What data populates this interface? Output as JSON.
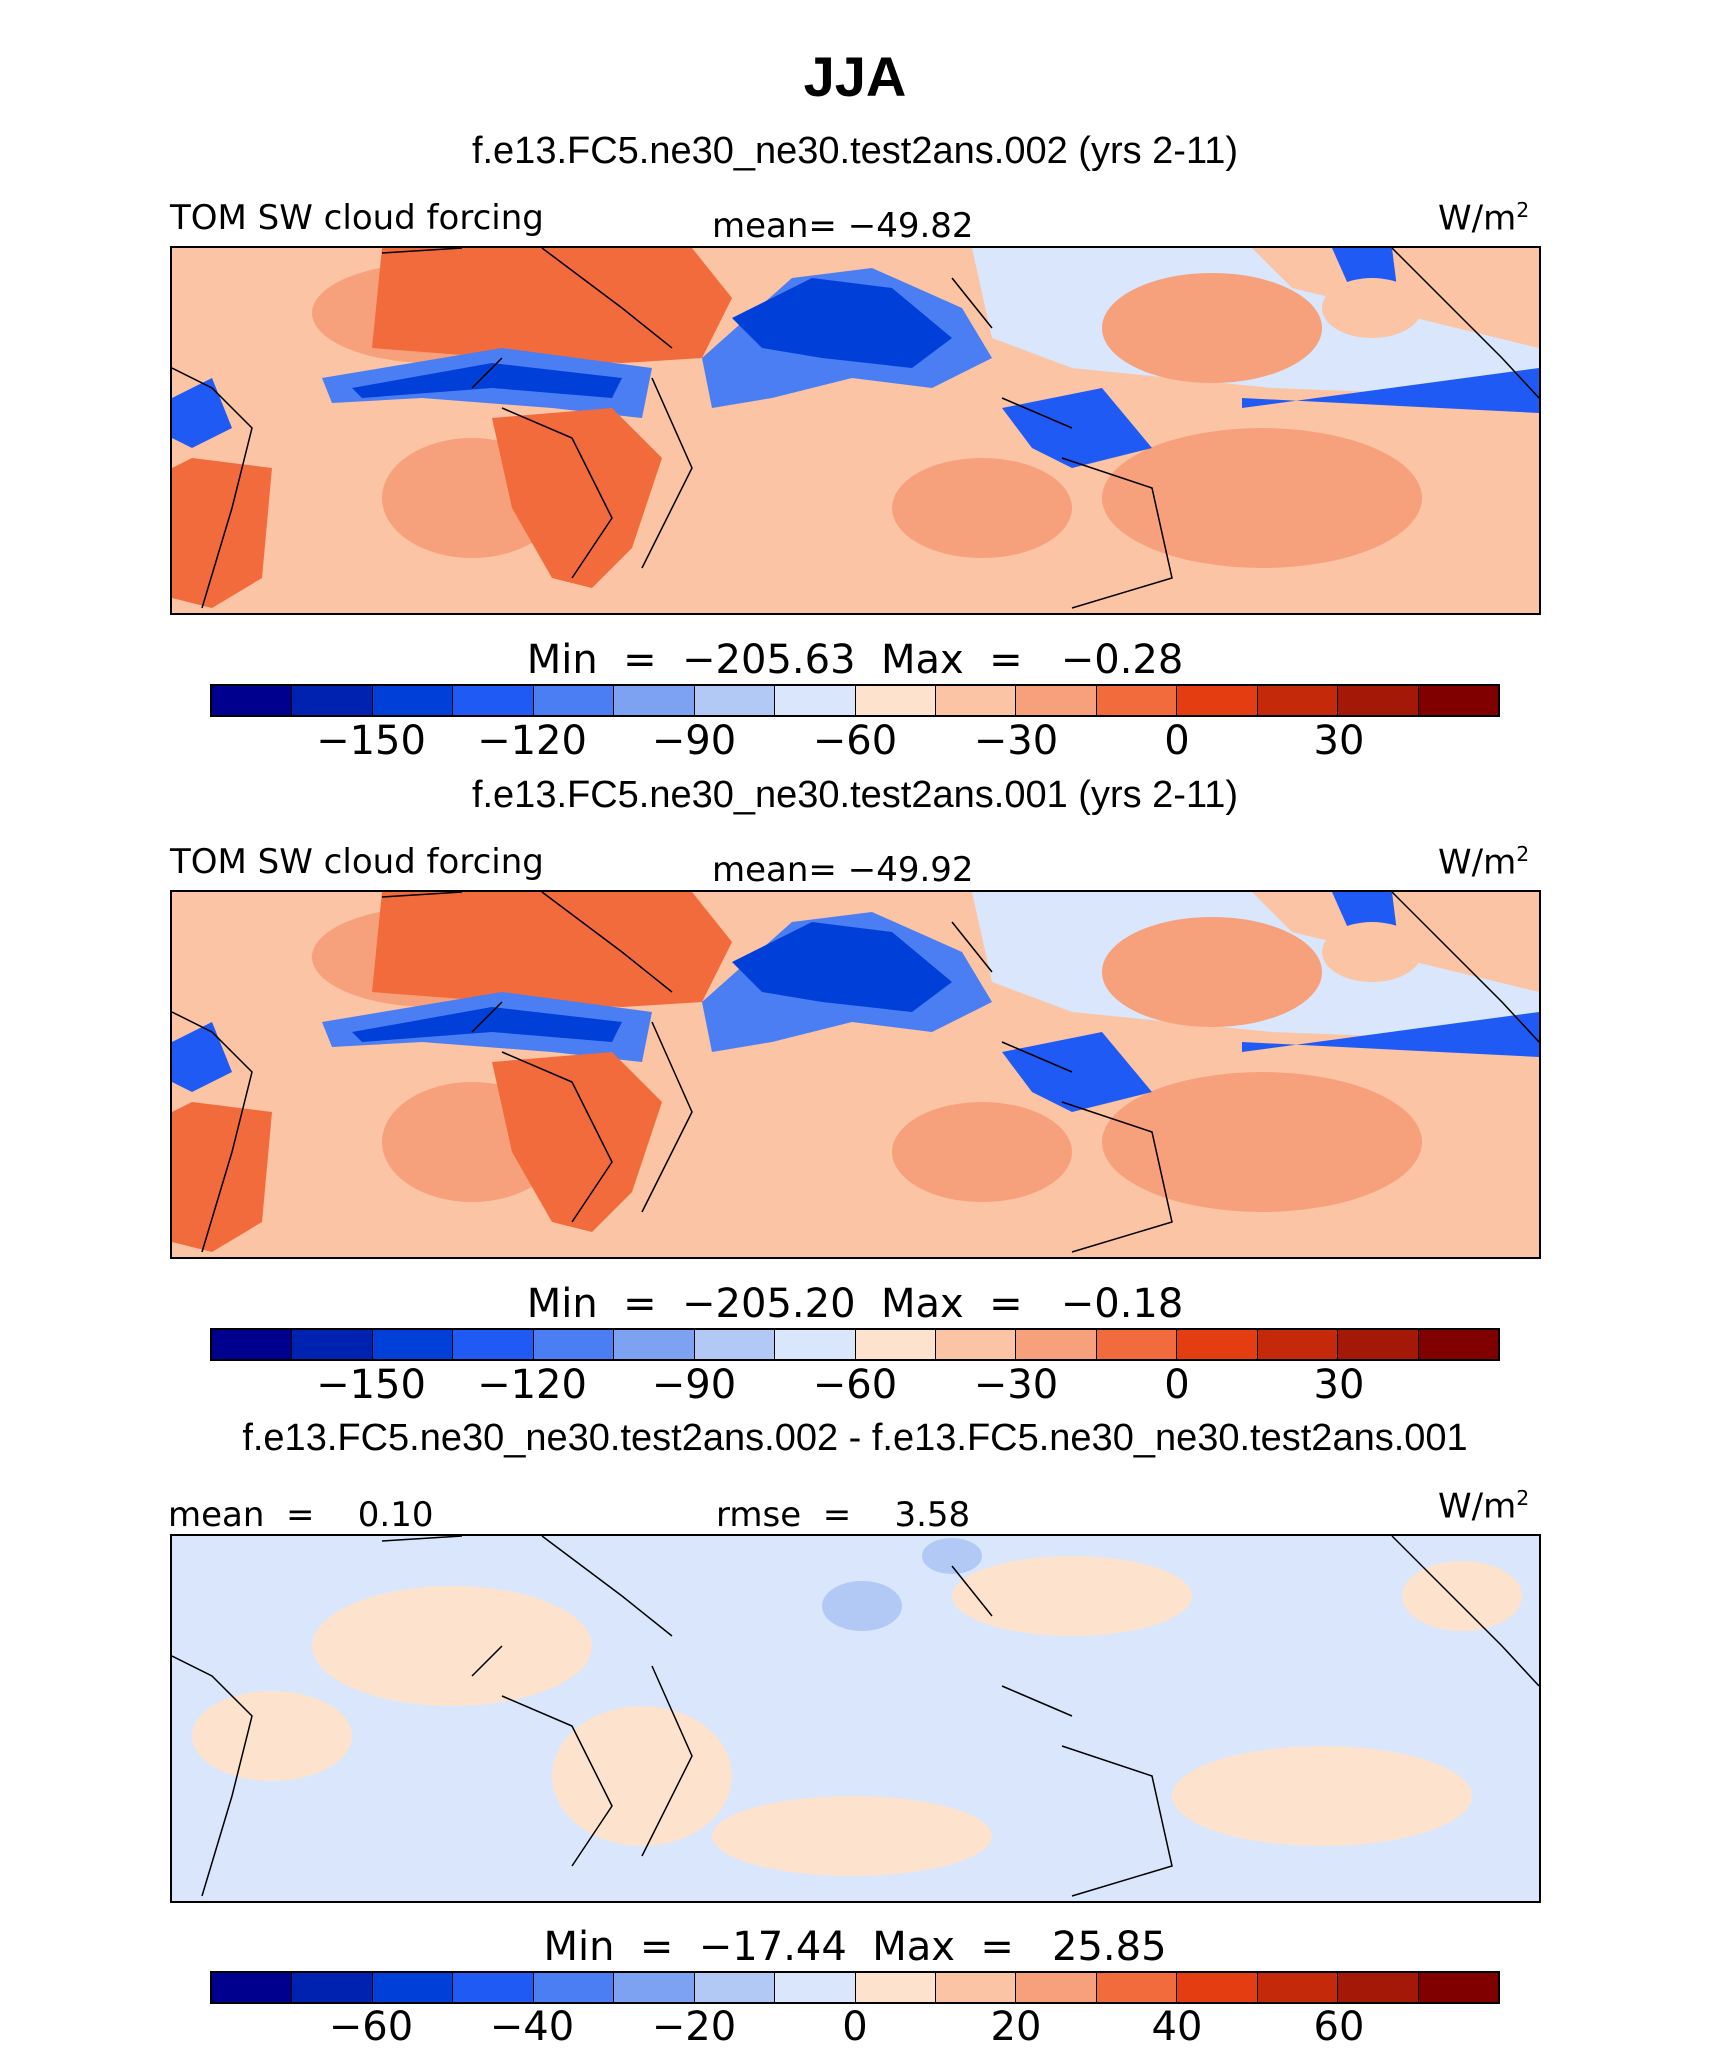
{
  "title": "JJA",
  "panels": [
    {
      "subtitle": "f.e13.FC5.ne30_ne30.test2ans.002 (yrs 2-11)",
      "left_label": "TOM SW cloud forcing",
      "center_label": "mean= −49.82",
      "units": "W/m",
      "units_sup": "2",
      "min_max": "Min  =  −205.63  Max  =   −0.28",
      "ticks": [
        "−150",
        "−120",
        "−90",
        "−60",
        "−30",
        "0",
        "30"
      ]
    },
    {
      "subtitle": "f.e13.FC5.ne30_ne30.test2ans.001 (yrs 2-11)",
      "left_label": "TOM SW cloud forcing",
      "center_label": "mean= −49.92",
      "units": "W/m",
      "units_sup": "2",
      "min_max": "Min  =  −205.20  Max  =   −0.18",
      "ticks": [
        "−150",
        "−120",
        "−90",
        "−60",
        "−30",
        "0",
        "30"
      ]
    },
    {
      "subtitle": "f.e13.FC5.ne30_ne30.test2ans.002 - f.e13.FC5.ne30_ne30.test2ans.001",
      "left_label": "mean  =    0.10",
      "center_label": "rmse  =    3.58",
      "units": "W/m",
      "units_sup": "2",
      "min_max": "Min  =  −17.44  Max  =   25.85",
      "ticks": [
        "−60",
        "−40",
        "−20",
        "0",
        "20",
        "40",
        "60"
      ]
    }
  ],
  "colorbar_colors": [
    "#00008f",
    "#0022b0",
    "#0040d8",
    "#1f5af5",
    "#4a7ef2",
    "#7ea2f2",
    "#b2c9f5",
    "#d9e6fb",
    "#fde3ce",
    "#fbc4a4",
    "#f7a07c",
    "#f26b3c",
    "#e43d12",
    "#c42a0a",
    "#a41808",
    "#800000"
  ]
}
